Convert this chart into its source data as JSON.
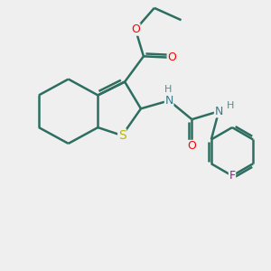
{
  "bg_color": "#efefef",
  "bond_color": "#2d6e60",
  "bond_width": 1.8,
  "atom_colors": {
    "O": "#ff0000",
    "N": "#3a7a8a",
    "S": "#b8b800",
    "F": "#cc00aa",
    "H": "#5a8a8a"
  },
  "font_size": 9
}
